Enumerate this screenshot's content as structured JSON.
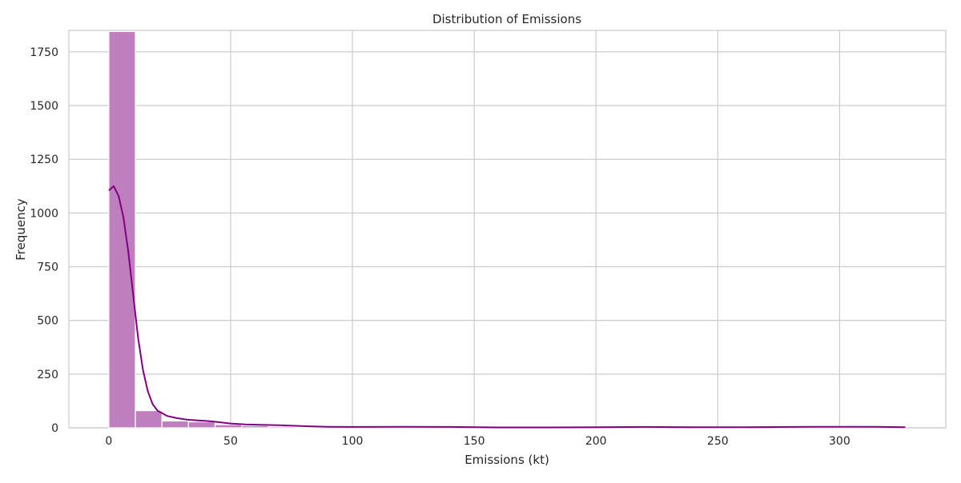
{
  "chart_data": {
    "type": "bar",
    "subtype": "histogram-with-kde",
    "title": "Distribution of Emissions",
    "xlabel": "Emissions (kt)",
    "ylabel": "Frequency",
    "xlim": [
      -16.4,
      343.6
    ],
    "ylim": [
      0,
      1850
    ],
    "x_ticks": [
      0,
      50,
      100,
      150,
      200,
      250,
      300
    ],
    "y_ticks": [
      0,
      250,
      500,
      750,
      1000,
      1250,
      1500,
      1750
    ],
    "grid": true,
    "legend": "none",
    "bar_color": "#bf7fbf",
    "kde_color": "#800080",
    "bin_edges": [
      0,
      10.9,
      21.8,
      32.7,
      43.6,
      54.5,
      65.4,
      76.3,
      87.2,
      98.1,
      109.0,
      119.9,
      130.8,
      141.7,
      152.6,
      163.5,
      174.4,
      185.3,
      196.2,
      207.1,
      218.0,
      228.9,
      239.8,
      250.7,
      261.6,
      272.5,
      283.4,
      294.3,
      305.2,
      316.1,
      327.0
    ],
    "counts": [
      1845,
      80,
      32,
      28,
      15,
      10,
      6,
      4,
      3,
      2,
      2,
      2,
      2,
      1,
      0,
      0,
      0,
      0,
      0,
      1,
      1,
      0,
      1,
      1,
      0,
      1,
      1,
      1,
      1,
      1
    ],
    "kde": {
      "x": [
        0,
        2,
        4,
        6,
        8,
        10,
        12,
        14,
        16,
        18,
        20,
        24,
        28,
        32,
        36,
        40,
        44,
        50,
        56,
        62,
        70,
        80,
        90,
        100,
        120,
        140,
        160,
        180,
        200,
        220,
        240,
        260,
        280,
        300,
        315,
        327
      ],
      "y": [
        1105,
        1125,
        1080,
        980,
        820,
        620,
        420,
        270,
        170,
        110,
        80,
        55,
        45,
        38,
        35,
        32,
        28,
        20,
        16,
        14,
        12,
        8,
        5,
        4,
        5,
        4,
        2,
        2,
        3,
        4,
        3,
        3,
        4,
        5,
        5,
        3
      ]
    }
  }
}
